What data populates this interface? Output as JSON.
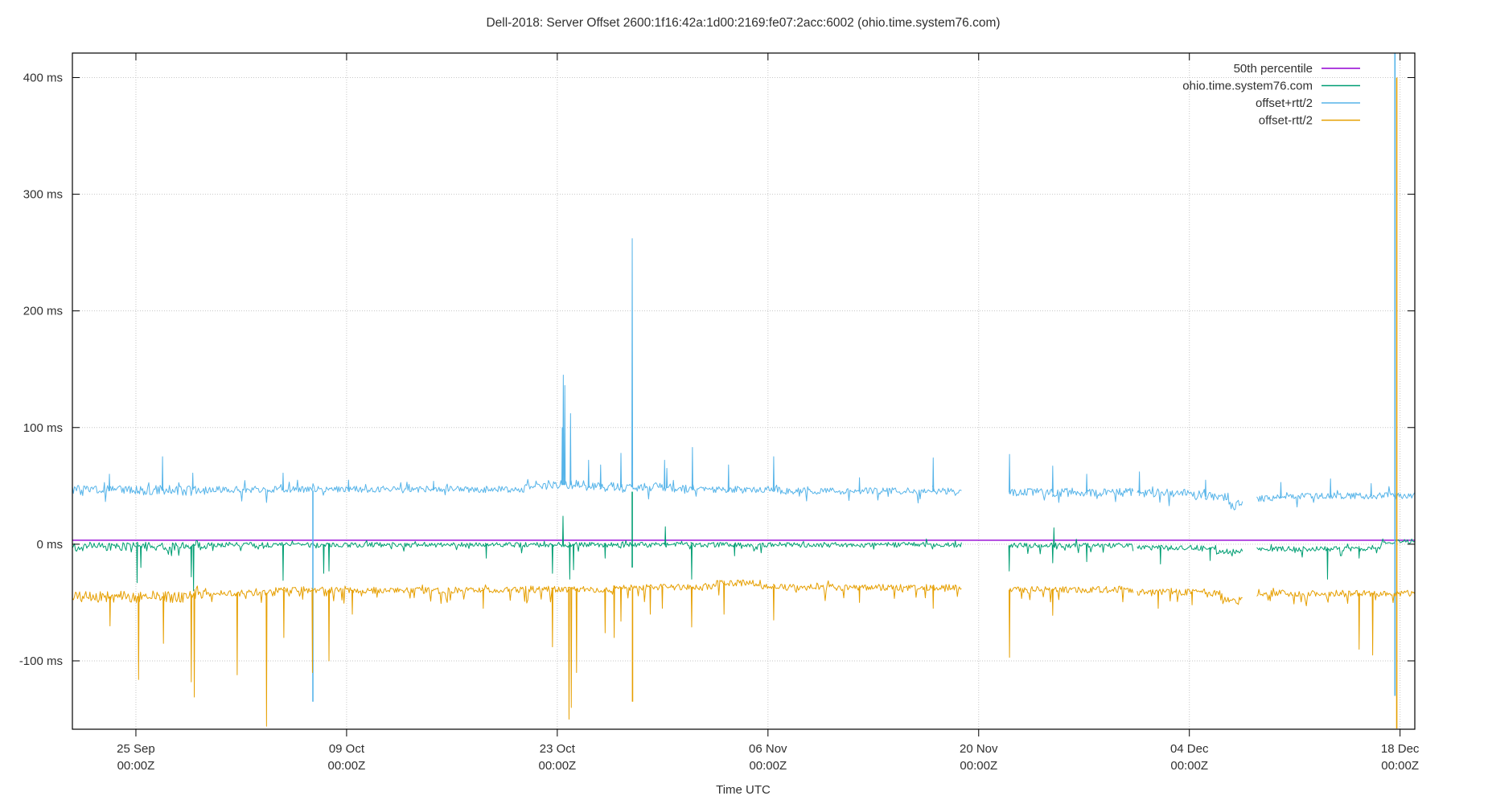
{
  "chart_data": {
    "type": "line",
    "title": "Dell-2018: Server Offset 2600:1f16:42a:1d00:2169:fe07:2acc:6002 (ohio.time.system76.com)",
    "xlabel": "Time UTC",
    "grid": true,
    "legend_position": "top-right-inside",
    "colors": {
      "percentile": "#9400D3",
      "offset": "#009E73",
      "offset_plus_rtt": "#56B4E9",
      "offset_minus_rtt": "#E69F00",
      "grid": "#c6c6c6",
      "frame": "#000000",
      "text": "#303030"
    },
    "y_axis": {
      "min": -158.6,
      "max": 421,
      "ticks": [
        400,
        300,
        200,
        100,
        0,
        -100
      ],
      "tick_suffix": " ms"
    },
    "x_axis": {
      "days_total": 89.2,
      "tick_days": [
        4.22,
        18.22,
        32.22,
        46.22,
        60.22,
        74.22,
        88.22
      ],
      "tick_labels": [
        [
          "25 Sep",
          "00:00Z"
        ],
        [
          "09 Oct",
          "00:00Z"
        ],
        [
          "23 Oct",
          "00:00Z"
        ],
        [
          "06 Nov",
          "00:00Z"
        ],
        [
          "20 Nov",
          "00:00Z"
        ],
        [
          "04 Dec",
          "00:00Z"
        ],
        [
          "18 Dec",
          "00:00Z"
        ]
      ]
    },
    "segments": [
      [
        0,
        59.1
      ],
      [
        62.25,
        70.54
      ],
      [
        70.75,
        77.75
      ],
      [
        78.7,
        89.2
      ]
    ],
    "series": [
      {
        "name": "50th percentile",
        "color": "#9400D3",
        "style": "hline",
        "value": 3.4,
        "x_range": [
          0,
          89.2
        ]
      },
      {
        "name": "ohio.time.system76.com",
        "color": "#009E73",
        "style": "noisy-line",
        "noise": 2.2,
        "noise_extra": [
          [
            0,
            9,
            3.8
          ]
        ],
        "hairs": {
          "p_down": 0.06,
          "amp_down": 6,
          "p_up": 0.03,
          "amp_up": 4
        },
        "levels": [
          [
            0,
            8,
            -2
          ],
          [
            8,
            59.1,
            -0.5
          ],
          [
            62.25,
            70.54,
            -1
          ],
          [
            70.75,
            76,
            -3
          ],
          [
            76,
            77.75,
            -6
          ],
          [
            78.7,
            87,
            -4
          ],
          [
            87,
            89.2,
            2.5
          ]
        ],
        "spikes": [
          [
            4.3,
            -33
          ],
          [
            4.55,
            -20
          ],
          [
            7.9,
            -28
          ],
          [
            8.05,
            -40
          ],
          [
            14.0,
            -31
          ],
          [
            16.7,
            -25
          ],
          [
            17.05,
            -23
          ],
          [
            27.5,
            -12
          ],
          [
            31.9,
            -25
          ],
          [
            32.6,
            24
          ],
          [
            33.05,
            -30
          ],
          [
            33.3,
            -22
          ],
          [
            35.4,
            -12
          ],
          [
            39.4,
            15
          ],
          [
            41.15,
            -30
          ],
          [
            44,
            -10
          ],
          [
            62.25,
            -23
          ],
          [
            65.14,
            -16
          ],
          [
            65.22,
            14
          ],
          [
            67.4,
            -15
          ],
          [
            72.3,
            -17
          ],
          [
            75.6,
            -14
          ],
          [
            83.4,
            -30
          ],
          [
            85.5,
            -12
          ]
        ],
        "vlines": [
          [
            37.2,
            -20,
            45
          ]
        ]
      },
      {
        "name": "offset+rtt/2",
        "color": "#56B4E9",
        "style": "noisy-line",
        "noise": 2.8,
        "noise_extra": [
          [
            0,
            9,
            4.5
          ],
          [
            31,
            41,
            4
          ],
          [
            62.5,
            77.75,
            3.8
          ]
        ],
        "hairs": {
          "p_down": 0.05,
          "amp_down": 9,
          "p_up": 0.04,
          "amp_up": 7
        },
        "levels": [
          [
            0,
            8,
            46
          ],
          [
            8,
            30,
            47
          ],
          [
            30,
            31.5,
            49
          ],
          [
            31.5,
            34,
            51
          ],
          [
            34,
            40,
            49
          ],
          [
            40,
            47,
            47
          ],
          [
            47,
            59.1,
            45.5
          ],
          [
            62.25,
            70.54,
            44.5
          ],
          [
            70.75,
            74.5,
            44
          ],
          [
            74.5,
            76.8,
            41
          ],
          [
            76.8,
            77.75,
            33
          ],
          [
            78.7,
            80,
            39
          ],
          [
            80,
            89.2,
            41.5
          ]
        ],
        "spikes": [
          [
            2.46,
            60
          ],
          [
            5.99,
            75
          ],
          [
            8.0,
            61
          ],
          [
            14.0,
            61
          ],
          [
            18.35,
            55
          ],
          [
            24,
            54
          ],
          [
            32.55,
            100
          ],
          [
            32.62,
            145
          ],
          [
            32.72,
            136
          ],
          [
            33.1,
            112
          ],
          [
            34.3,
            72
          ],
          [
            35.1,
            68
          ],
          [
            36.45,
            78
          ],
          [
            37.2,
            262
          ],
          [
            39.35,
            72
          ],
          [
            39.5,
            65
          ],
          [
            41.2,
            83
          ],
          [
            43.6,
            68
          ],
          [
            46.6,
            75
          ],
          [
            52.3,
            57
          ],
          [
            57.2,
            74
          ],
          [
            62.27,
            77
          ],
          [
            65.14,
            67
          ],
          [
            67.4,
            60
          ],
          [
            70.9,
            62
          ],
          [
            75.3,
            55
          ],
          [
            80.3,
            53
          ],
          [
            83.6,
            56
          ],
          [
            86.3,
            52
          ]
        ],
        "vlines": [
          [
            15.98,
            -135,
            46
          ],
          [
            87.88,
            -130,
            421
          ]
        ]
      },
      {
        "name": "offset-rtt/2",
        "color": "#E69F00",
        "style": "noisy-line",
        "noise": 2.8,
        "noise_extra": [
          [
            0,
            9,
            5
          ]
        ],
        "hairs": {
          "p_down": 0.09,
          "amp_down": 10,
          "p_up": 0.02,
          "amp_up": 4
        },
        "levels": [
          [
            0,
            8,
            -45
          ],
          [
            8,
            13.5,
            -42
          ],
          [
            13.5,
            30,
            -39.5
          ],
          [
            30,
            36,
            -38.5
          ],
          [
            36,
            42.5,
            -37
          ],
          [
            42.5,
            45.7,
            -33.5
          ],
          [
            45.7,
            59.1,
            -37
          ],
          [
            62.25,
            70.54,
            -39
          ],
          [
            70.75,
            76.5,
            -41
          ],
          [
            76.5,
            77.75,
            -48
          ],
          [
            78.7,
            89.2,
            -42
          ]
        ],
        "spikes": [
          [
            2.5,
            -70
          ],
          [
            4.4,
            -116
          ],
          [
            6.05,
            -85
          ],
          [
            7.9,
            -118
          ],
          [
            8.1,
            -131
          ],
          [
            10.95,
            -112
          ],
          [
            12.9,
            -156
          ],
          [
            14.05,
            -80
          ],
          [
            15.95,
            -110
          ],
          [
            17.05,
            -100
          ],
          [
            18.6,
            -60
          ],
          [
            27.3,
            -55
          ],
          [
            31.9,
            -88
          ],
          [
            33.0,
            -150
          ],
          [
            33.15,
            -140
          ],
          [
            33.5,
            -110
          ],
          [
            35.4,
            -76
          ],
          [
            36.0,
            -80
          ],
          [
            36.45,
            -66
          ],
          [
            38.4,
            -60
          ],
          [
            39.2,
            -55
          ],
          [
            41.15,
            -71
          ],
          [
            43.3,
            -60
          ],
          [
            46.6,
            -65
          ],
          [
            52.3,
            -50
          ],
          [
            57.2,
            -55
          ],
          [
            62.27,
            -97
          ],
          [
            65.14,
            -61
          ],
          [
            72.15,
            -55
          ],
          [
            74.4,
            -52
          ],
          [
            85.5,
            -90
          ],
          [
            86.4,
            -95
          ]
        ],
        "vlines": [
          [
            37.22,
            -135,
            -38
          ],
          [
            88.0,
            -158,
            400
          ]
        ]
      }
    ],
    "legend": [
      {
        "label": "50th percentile",
        "color": "#9400D3"
      },
      {
        "label": "ohio.time.system76.com",
        "color": "#009E73"
      },
      {
        "label": "offset+rtt/2",
        "color": "#56B4E9"
      },
      {
        "label": "offset-rtt/2",
        "color": "#E69F00"
      }
    ]
  }
}
